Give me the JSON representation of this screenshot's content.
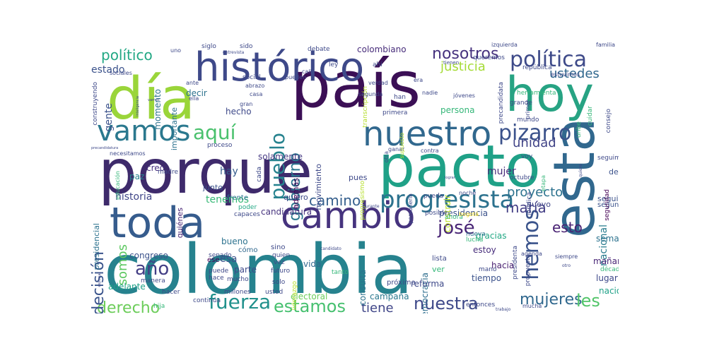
{
  "colors": {
    "background": "#ffffff",
    "palette": [
      "#440154",
      "#482878",
      "#3e4989",
      "#31688e",
      "#26828e",
      "#1f9e89",
      "#35b779",
      "#6ece58",
      "#b5de2b",
      "#fde725"
    ]
  },
  "words": [
    {
      "text": "colombia",
      "color": "#26828e"
    },
    {
      "text": "porque",
      "color": "#3e2a6b"
    },
    {
      "text": "país",
      "color": "#3b0f55"
    },
    {
      "text": "pacto",
      "color": "#1fa187"
    },
    {
      "text": "día",
      "color": "#9ad53a"
    },
    {
      "text": "hoy",
      "color": "#27a383"
    },
    {
      "text": "esta",
      "color": "#31688e"
    },
    {
      "text": "toda",
      "color": "#365c8d"
    },
    {
      "text": "histórico",
      "color": "#3e4989"
    },
    {
      "text": "cambio",
      "color": "#46337e"
    },
    {
      "text": "nuestro",
      "color": "#31688e"
    },
    {
      "text": "vamos",
      "color": "#2a788e"
    },
    {
      "text": "política",
      "color": "#3e4a89"
    },
    {
      "text": "progresista",
      "color": "#2c728e"
    },
    {
      "text": "fuerza",
      "color": "#21918c"
    },
    {
      "text": "pizarro",
      "color": "#3b528b"
    },
    {
      "text": "hemos",
      "color": "#3a538b"
    },
    {
      "text": "aquí",
      "color": "#4ac16d"
    },
    {
      "text": "pueblo",
      "color": "#26828e"
    },
    {
      "text": "estamos",
      "color": "#46c06f"
    },
    {
      "text": "nuestra",
      "color": "#3e4989"
    },
    {
      "text": "derecho",
      "color": "#6ccd5a"
    },
    {
      "text": "año",
      "color": "#433e85"
    },
    {
      "text": "josé",
      "color": "#482475"
    },
    {
      "text": "decisión",
      "color": "#3a548c"
    },
    {
      "text": "gobierno",
      "color": "#2a778e"
    },
    {
      "text": "mujeres",
      "color": "#31688e"
    },
    {
      "text": "les",
      "color": "#52c569"
    },
    {
      "text": "nosotros",
      "color": "#46327e"
    },
    {
      "text": "político",
      "color": "#22a884"
    },
    {
      "text": "unidad",
      "color": "#414487"
    },
    {
      "text": "ustedes",
      "color": "#31688e"
    },
    {
      "text": "camino",
      "color": "#355f8d"
    },
    {
      "text": "proyecto",
      "color": "#2c728e"
    },
    {
      "text": "maría",
      "color": "#433e85"
    },
    {
      "text": "esto",
      "color": "#482173"
    },
    {
      "text": "tiene",
      "color": "#404688"
    },
    {
      "text": "somos",
      "color": "#5ec962"
    },
    {
      "text": "justicia",
      "color": "#a5db36"
    },
    {
      "text": "historia",
      "color": "#404688"
    },
    {
      "text": "tenemos",
      "color": "#38b977"
    },
    {
      "text": "hay",
      "color": "#365d8d"
    },
    {
      "text": "mujer",
      "color": "#472d7b"
    },
    {
      "text": "esa",
      "color": "#3b528b"
    },
    {
      "text": "gente",
      "color": "#3b528b"
    },
    {
      "text": "estado",
      "color": "#3b528b"
    },
    {
      "text": "nacional",
      "color": "#287c8e"
    },
    {
      "text": "hacia",
      "color": "#481f70"
    },
    {
      "text": "colombiano",
      "color": "#472c7a"
    },
    {
      "text": "candidatura",
      "color": "#46337e"
    },
    {
      "text": "congreso",
      "color": "#3b528b"
    },
    {
      "text": "vida",
      "color": "#31688e"
    },
    {
      "text": "gracias",
      "color": "#22a884"
    },
    {
      "text": "presidencia",
      "color": "#3b528b"
    },
    {
      "text": "tiempo",
      "color": "#3b528b"
    },
    {
      "text": "lugar",
      "color": "#3e4989"
    },
    {
      "text": "semana",
      "color": "#2c728e"
    },
    {
      "text": "mañana",
      "color": "#482475"
    },
    {
      "text": "nación",
      "color": "#1fa187"
    },
    {
      "text": "democracia",
      "color": "#2e6e8e"
    },
    {
      "text": "consulta",
      "color": "#2c728e"
    },
    {
      "text": "creo",
      "color": "#472f7d"
    },
    {
      "text": "momento",
      "color": "#2c728e"
    },
    {
      "text": "decir",
      "color": "#2c728e"
    },
    {
      "text": "hecho",
      "color": "#3e4989"
    },
    {
      "text": "persona",
      "color": "#35b779"
    },
    {
      "text": "construir",
      "color": "#bddf26"
    },
    {
      "text": "solamente",
      "color": "#453882"
    },
    {
      "text": "adelante",
      "color": "#1fa187"
    },
    {
      "text": "electoral",
      "color": "#6ccd5a"
    },
    {
      "text": "campaña",
      "color": "#2a788e"
    },
    {
      "text": "reforma",
      "color": "#3e4989"
    },
    {
      "text": "bueno",
      "color": "#2c728e"
    },
    {
      "text": "parte",
      "color": "#3e4989"
    },
    {
      "text": "estoy",
      "color": "#472d7b"
    },
    {
      "text": "nuevo",
      "color": "#404688"
    },
    {
      "text": "debe",
      "color": "#3b528b"
    },
    {
      "text": "seguir",
      "color": "#3b528b"
    },
    {
      "text": "segundo",
      "color": "#3b528b"
    },
    {
      "text": "paz",
      "color": "#26828e"
    },
    {
      "text": "junto",
      "color": "#3b528b"
    },
    {
      "text": "frente",
      "color": "#2c728e"
    },
    {
      "text": "quiero",
      "color": "#3e4989"
    },
    {
      "text": "pues",
      "color": "#3e4989"
    },
    {
      "text": "cada",
      "color": "#3e4989"
    },
    {
      "text": "además",
      "color": "#440154"
    },
    {
      "text": "movimiento",
      "color": "#3e4989"
    },
    {
      "text": "importante",
      "color": "#2c728e"
    },
    {
      "text": "quiénes",
      "color": "#482475"
    },
    {
      "text": "presidencial",
      "color": "#2c728e"
    },
    {
      "text": "poder",
      "color": "#22a884"
    },
    {
      "text": "capaces",
      "color": "#3e4989"
    },
    {
      "text": "posible",
      "color": "#3e4989"
    },
    {
      "text": "ahora",
      "color": "#35b779"
    },
    {
      "text": "nueva",
      "color": "#2c728e"
    },
    {
      "text": "lucha",
      "color": "#35b779"
    },
    {
      "text": "lista",
      "color": "#3e4989"
    },
    {
      "text": "ver",
      "color": "#35b779"
    },
    {
      "text": "mano",
      "color": "#3e4989"
    },
    {
      "text": "próximo",
      "color": "#3e4989"
    },
    {
      "text": "tanto",
      "color": "#35b779"
    },
    {
      "text": "sino",
      "color": "#3e4989"
    },
    {
      "text": "futuro",
      "color": "#3e4989"
    },
    {
      "text": "cómo",
      "color": "#31688e"
    },
    {
      "text": "ese",
      "color": "#440154"
    },
    {
      "text": "puede",
      "color": "#3e4989"
    },
    {
      "text": "hace",
      "color": "#3e4989"
    },
    {
      "text": "senado",
      "color": "#3e4989"
    },
    {
      "text": "mucho",
      "color": "#3e4989"
    },
    {
      "text": "quien",
      "color": "#3e4989"
    },
    {
      "text": "vez",
      "color": "#3e4989"
    },
    {
      "text": "solo",
      "color": "#3e4989"
    },
    {
      "text": "millones",
      "color": "#3e4989"
    },
    {
      "text": "usted",
      "color": "#3e4989"
    },
    {
      "text": "liderazgo",
      "color": "#b5de2b"
    },
    {
      "text": "hacer",
      "color": "#3e4989"
    },
    {
      "text": "continúa",
      "color": "#3e4989"
    },
    {
      "text": "manera",
      "color": "#3e4989"
    },
    {
      "text": "hija",
      "color": "#35b779"
    },
    {
      "text": "mucha",
      "color": "#3e4989"
    },
    {
      "text": "entonces",
      "color": "#3e4989"
    },
    {
      "text": "siempre",
      "color": "#3e4989"
    },
    {
      "text": "década",
      "color": "#35b779"
    },
    {
      "text": "agenda",
      "color": "#3e4989"
    },
    {
      "text": "seguridad",
      "color": "#440154"
    },
    {
      "text": "jurídica",
      "color": "#3e4989"
    },
    {
      "text": "etapa",
      "color": "#35b779"
    },
    {
      "text": "octubre",
      "color": "#3e4989"
    },
    {
      "text": "noche",
      "color": "#3e4989"
    },
    {
      "text": "voy",
      "color": "#3e4989"
    },
    {
      "text": "mundo",
      "color": "#3e4989"
    },
    {
      "text": "presidenta",
      "color": "#3e4989"
    },
    {
      "text": "propuesta",
      "color": "#3e4989"
    },
    {
      "text": "grande",
      "color": "#3e4989"
    },
    {
      "text": "primer",
      "color": "#3e4989"
    },
    {
      "text": "herramienta",
      "color": "#35b779"
    },
    {
      "text": "república",
      "color": "#3e4989"
    },
    {
      "text": "estuvimos",
      "color": "#3e4989"
    },
    {
      "text": "precandidata",
      "color": "#3e4989"
    },
    {
      "text": "consejo",
      "color": "#3e4989"
    },
    {
      "text": "uribe",
      "color": "#35b779"
    },
    {
      "text": "cuidar",
      "color": "#35b779"
    },
    {
      "text": "seguimos",
      "color": "#3e4989"
    },
    {
      "text": "personería",
      "color": "#3e4989"
    },
    {
      "text": "pueda",
      "color": "#3e4989"
    },
    {
      "text": "progresismo",
      "color": "#b5de2b"
    },
    {
      "text": "primera",
      "color": "#3e4989"
    },
    {
      "text": "ganar",
      "color": "#3e4989"
    },
    {
      "text": "otra",
      "color": "#3e4989"
    },
    {
      "text": "transcripción",
      "color": "#b5de2b"
    },
    {
      "text": "han",
      "color": "#3e4989"
    },
    {
      "text": "nadie",
      "color": "#3e4989"
    },
    {
      "text": "jóvenes",
      "color": "#3e4989"
    },
    {
      "text": "era",
      "color": "#3e4989"
    },
    {
      "text": "segunda",
      "color": "#3e4989"
    },
    {
      "text": "verdad",
      "color": "#3e4989"
    },
    {
      "text": "ahí",
      "color": "#3e4989"
    },
    {
      "text": "ley",
      "color": "#3e4989"
    },
    {
      "text": "debate",
      "color": "#3e4989"
    },
    {
      "text": "queremos",
      "color": "#3e4989"
    },
    {
      "text": "izquierda",
      "color": "#3e4989"
    },
    {
      "text": "familia",
      "color": "#3e4989"
    },
    {
      "text": "siglo",
      "color": "#3e4989"
    },
    {
      "text": "sido",
      "color": "#3e4989"
    },
    {
      "text": "social",
      "color": "#3e4989"
    },
    {
      "text": "abrazo",
      "color": "#3e4989"
    },
    {
      "text": "casa",
      "color": "#3e4989"
    },
    {
      "text": "gran",
      "color": "#3e4989"
    },
    {
      "text": "ante",
      "color": "#3e4989"
    },
    {
      "text": "ella",
      "color": "#3e4989"
    },
    {
      "text": "sociales",
      "color": "#3e4989"
    },
    {
      "text": "construyendo",
      "color": "#3e4989"
    },
    {
      "text": "necesitamos",
      "color": "#3e4989"
    },
    {
      "text": "proceso",
      "color": "#3e4989"
    },
    {
      "text": "madre",
      "color": "#3e4989"
    },
    {
      "text": "educación",
      "color": "#35b779"
    },
    {
      "text": "supuesto",
      "color": "#b5de2b"
    },
    {
      "text": "contra",
      "color": "#3e4989"
    },
    {
      "text": "bogotá",
      "color": "#fde725"
    },
    {
      "text": "uno",
      "color": "#3e4989"
    },
    {
      "text": "pueden",
      "color": "#3e4989"
    },
    {
      "text": "cali",
      "color": "#3e4989"
    },
    {
      "text": "tienen",
      "color": "#3e4989"
    },
    {
      "text": "entrevista",
      "color": "#3e4989"
    },
    {
      "text": "durante",
      "color": "#3e4989"
    },
    {
      "text": "candidato",
      "color": "#3e4989"
    },
    {
      "text": "trabajo",
      "color": "#3e4989"
    },
    {
      "text": "otro",
      "color": "#3e4989"
    },
    {
      "text": "quiere",
      "color": "#3e4989"
    },
    {
      "text": "inteligencia",
      "color": "#3e4989"
    },
    {
      "text": "vamos",
      "color": "#3e4989"
    },
    {
      "text": "precandidatura",
      "color": "#3e4989"
    },
    {
      "text": "lograr",
      "color": "#3e4989"
    },
    {
      "text": "especial",
      "color": "#3e4989"
    }
  ]
}
